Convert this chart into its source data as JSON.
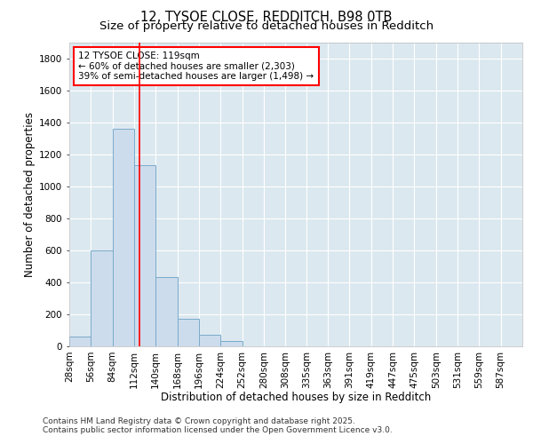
{
  "title1": "12, TYSOE CLOSE, REDDITCH, B98 0TB",
  "title2": "Size of property relative to detached houses in Redditch",
  "xlabel": "Distribution of detached houses by size in Redditch",
  "ylabel": "Number of detached properties",
  "bar_color": "#ccdcec",
  "bar_edge_color": "#7aaaca",
  "bg_color": "#dce8f0",
  "grid_color": "#ffffff",
  "fig_bg_color": "#ffffff",
  "categories": [
    "28sqm",
    "56sqm",
    "84sqm",
    "112sqm",
    "140sqm",
    "168sqm",
    "196sqm",
    "224sqm",
    "252sqm",
    "280sqm",
    "308sqm",
    "335sqm",
    "363sqm",
    "391sqm",
    "419sqm",
    "447sqm",
    "475sqm",
    "503sqm",
    "531sqm",
    "559sqm",
    "587sqm"
  ],
  "values": [
    60,
    600,
    1360,
    1130,
    430,
    170,
    70,
    35,
    0,
    0,
    0,
    0,
    0,
    0,
    0,
    0,
    0,
    0,
    0,
    0,
    0
  ],
  "bin_width": 28,
  "bin_starts": [
    28,
    56,
    84,
    112,
    140,
    168,
    196,
    224,
    252,
    280,
    308,
    335,
    363,
    391,
    419,
    447,
    475,
    503,
    531,
    559,
    587
  ],
  "red_line_x": 119,
  "ylim": [
    0,
    1900
  ],
  "yticks": [
    0,
    200,
    400,
    600,
    800,
    1000,
    1200,
    1400,
    1600,
    1800
  ],
  "annotation_text": "12 TYSOE CLOSE: 119sqm\n← 60% of detached houses are smaller (2,303)\n39% of semi-detached houses are larger (1,498) →",
  "footer1": "Contains HM Land Registry data © Crown copyright and database right 2025.",
  "footer2": "Contains public sector information licensed under the Open Government Licence v3.0.",
  "title_fontsize": 10.5,
  "subtitle_fontsize": 9.5,
  "axis_label_fontsize": 8.5,
  "tick_fontsize": 7.5,
  "annotation_fontsize": 7.5,
  "footer_fontsize": 6.5
}
